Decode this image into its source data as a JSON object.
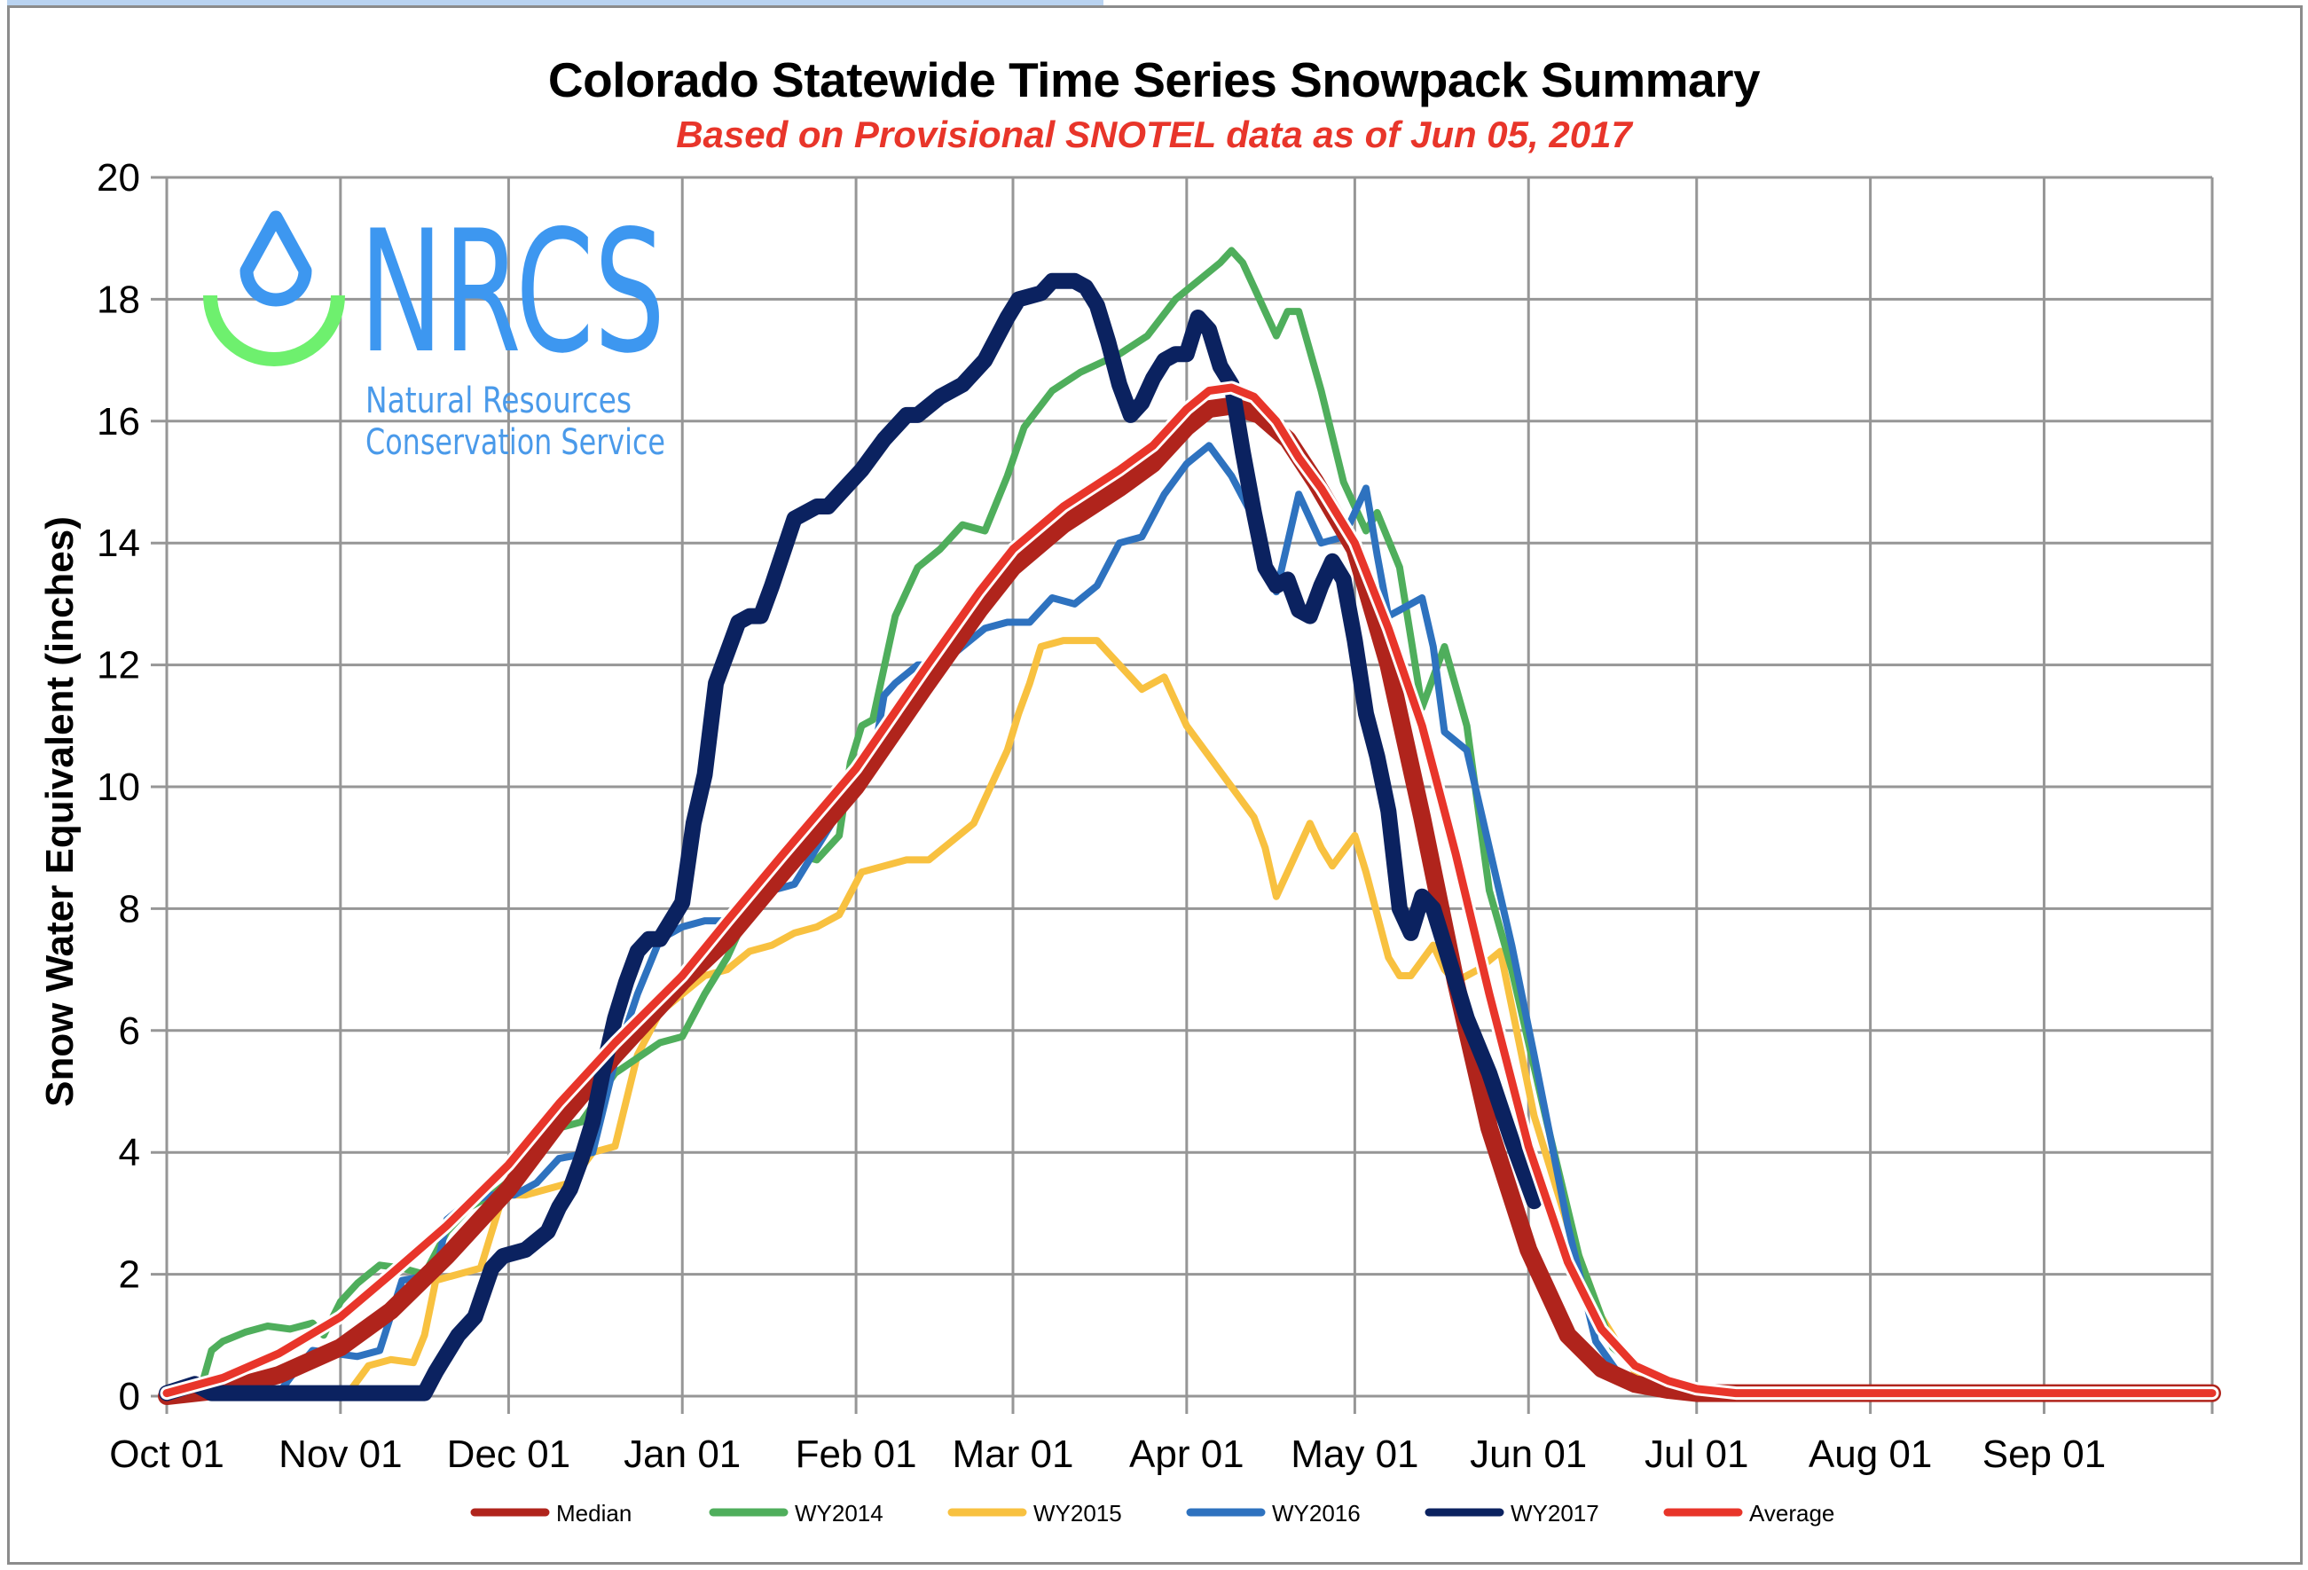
{
  "chart_data": {
    "type": "line",
    "title": "Colorado Statewide Time Series Snowpack Summary",
    "subtitle": "Based on Provisional SNOTEL data as of Jun 05, 2017",
    "xlabel": "",
    "ylabel": "Snow Water Equivalent (inches)",
    "x_unit": "day of water year (Oct 01 = 0)",
    "xlim": [
      0,
      365
    ],
    "ylim": [
      0,
      20
    ],
    "grid": true,
    "yticks": [
      0,
      2,
      4,
      6,
      8,
      10,
      12,
      14,
      16,
      18,
      20
    ],
    "xticks": [
      {
        "day": 0,
        "label": "Oct 01"
      },
      {
        "day": 31,
        "label": "Nov 01"
      },
      {
        "day": 61,
        "label": "Dec 01"
      },
      {
        "day": 92,
        "label": "Jan 01"
      },
      {
        "day": 123,
        "label": "Feb 01"
      },
      {
        "day": 151,
        "label": "Mar 01"
      },
      {
        "day": 182,
        "label": "Apr 01"
      },
      {
        "day": 212,
        "label": "May 01"
      },
      {
        "day": 243,
        "label": "Jun 01"
      },
      {
        "day": 273,
        "label": "Jul 01"
      },
      {
        "day": 304,
        "label": "Aug 01"
      },
      {
        "day": 335,
        "label": "Sep 01"
      }
    ],
    "legend_position": "bottom",
    "series": [
      {
        "name": "Median",
        "color": "#b0241c",
        "x": [
          0,
          10,
          20,
          31,
          40,
          50,
          61,
          70,
          80,
          92,
          100,
          110,
          123,
          135,
          145,
          151,
          160,
          170,
          176,
          182,
          186,
          190,
          195,
          200,
          205,
          212,
          218,
          224,
          230,
          236,
          243,
          250,
          256,
          262,
          268,
          273,
          280,
          300,
          330,
          365
        ],
        "y": [
          0.0,
          0.1,
          0.35,
          0.8,
          1.4,
          2.3,
          3.4,
          4.5,
          5.6,
          6.8,
          7.5,
          8.6,
          10.0,
          11.6,
          12.9,
          13.6,
          14.3,
          14.9,
          15.3,
          15.9,
          16.2,
          16.25,
          16.1,
          15.7,
          15.0,
          13.9,
          12.0,
          9.5,
          6.8,
          4.4,
          2.4,
          1.0,
          0.45,
          0.2,
          0.1,
          0.05,
          0.05,
          0.05,
          0.05,
          0.05
        ]
      },
      {
        "name": "WY2014",
        "color": "#4fae5c",
        "x": [
          0,
          4,
          6,
          8,
          10,
          14,
          18,
          22,
          26,
          28,
          31,
          34,
          38,
          42,
          46,
          50,
          54,
          58,
          62,
          66,
          70,
          74,
          80,
          88,
          92,
          96,
          100,
          104,
          108,
          112,
          116,
          120,
          122,
          124,
          126,
          130,
          134,
          138,
          142,
          146,
          150,
          153,
          158,
          163,
          170,
          175,
          180,
          184,
          188,
          190,
          192,
          194,
          198,
          200,
          202,
          206,
          210,
          214,
          216,
          220,
          224,
          228,
          232,
          236,
          240,
          246,
          252,
          258,
          264,
          270,
          275,
          300,
          365
        ],
        "y": [
          0.0,
          0.2,
          0.1,
          0.75,
          0.9,
          1.05,
          1.15,
          1.1,
          1.2,
          1.0,
          1.55,
          1.85,
          2.15,
          2.1,
          2.0,
          2.7,
          3.1,
          3.3,
          3.6,
          4.4,
          4.4,
          4.5,
          5.3,
          5.8,
          5.9,
          6.6,
          7.2,
          8.0,
          8.7,
          8.9,
          8.8,
          9.2,
          10.4,
          11.0,
          11.1,
          12.8,
          13.6,
          13.9,
          14.3,
          14.2,
          15.1,
          15.9,
          16.5,
          16.8,
          17.1,
          17.4,
          18.0,
          18.3,
          18.6,
          18.8,
          18.6,
          18.2,
          17.4,
          17.8,
          17.8,
          16.5,
          15.0,
          14.2,
          14.5,
          13.6,
          11.3,
          12.3,
          11.0,
          8.3,
          7.0,
          4.6,
          2.3,
          0.8,
          0.35,
          0.12,
          0.05,
          0.05,
          0.1
        ]
      },
      {
        "name": "WY2015",
        "color": "#f8c140",
        "x": [
          0,
          3,
          6,
          10,
          20,
          28,
          32,
          36,
          40,
          44,
          46,
          48,
          52,
          56,
          60,
          64,
          68,
          72,
          76,
          80,
          84,
          88,
          92,
          96,
          100,
          104,
          108,
          112,
          116,
          120,
          124,
          128,
          132,
          136,
          140,
          144,
          148,
          150,
          152,
          154,
          156,
          160,
          166,
          168,
          172,
          174,
          178,
          182,
          186,
          190,
          194,
          196,
          198,
          200,
          204,
          206,
          208,
          212,
          214,
          218,
          220,
          222,
          226,
          228,
          230,
          234,
          238,
          244,
          250,
          256,
          262,
          268,
          275,
          300,
          365
        ],
        "y": [
          0.1,
          0.2,
          0.05,
          0.0,
          0.0,
          0.0,
          0.0,
          0.5,
          0.6,
          0.55,
          1.0,
          1.9,
          2.0,
          2.1,
          3.3,
          3.3,
          3.4,
          3.5,
          4.0,
          4.1,
          5.6,
          6.3,
          6.6,
          6.9,
          7.0,
          7.3,
          7.4,
          7.6,
          7.7,
          7.9,
          8.6,
          8.7,
          8.8,
          8.8,
          9.1,
          9.4,
          10.2,
          10.6,
          11.2,
          11.7,
          12.3,
          12.4,
          12.4,
          12.2,
          11.8,
          11.6,
          11.8,
          11.0,
          10.5,
          10.0,
          9.5,
          9.0,
          8.2,
          8.6,
          9.4,
          9.0,
          8.7,
          9.2,
          8.6,
          7.2,
          6.9,
          6.9,
          7.4,
          7.0,
          6.8,
          7.0,
          7.3,
          4.6,
          2.8,
          1.3,
          0.4,
          0.12,
          0.05,
          0.05,
          0.05
        ]
      },
      {
        "name": "WY2016",
        "color": "#2e72bf",
        "x": [
          0,
          10,
          20,
          22,
          26,
          30,
          34,
          38,
          42,
          48,
          50,
          54,
          58,
          62,
          66,
          70,
          76,
          80,
          84,
          88,
          92,
          96,
          100,
          104,
          108,
          112,
          116,
          120,
          124,
          126,
          128,
          130,
          134,
          138,
          142,
          146,
          150,
          154,
          158,
          162,
          166,
          170,
          174,
          178,
          182,
          186,
          190,
          194,
          198,
          200,
          202,
          206,
          210,
          214,
          216,
          218,
          220,
          224,
          226,
          228,
          232,
          236,
          240,
          244,
          250,
          255,
          260,
          266,
          270,
          300,
          360,
          365
        ],
        "y": [
          0.0,
          0.05,
          0.05,
          0.3,
          0.75,
          0.7,
          0.65,
          0.75,
          1.9,
          2.0,
          2.9,
          3.2,
          3.3,
          3.3,
          3.5,
          3.9,
          4.0,
          5.5,
          6.6,
          7.5,
          7.7,
          7.8,
          7.8,
          8.1,
          8.3,
          8.4,
          9.0,
          9.6,
          10.0,
          10.4,
          11.5,
          11.7,
          12.0,
          12.0,
          12.3,
          12.6,
          12.7,
          12.7,
          13.1,
          13.0,
          13.3,
          14.0,
          14.1,
          14.8,
          15.3,
          15.6,
          15.1,
          14.4,
          13.2,
          14.0,
          14.8,
          14.0,
          14.1,
          14.9,
          13.8,
          12.8,
          12.9,
          13.1,
          12.3,
          10.9,
          10.6,
          9.0,
          7.4,
          5.6,
          2.8,
          0.9,
          0.25,
          0.05,
          0.02,
          0.02,
          0.05,
          0.05
        ]
      },
      {
        "name": "WY2017",
        "color": "#0b2260",
        "x": [
          0,
          5,
          8,
          12,
          20,
          30,
          40,
          46,
          48,
          52,
          55,
          58,
          60,
          64,
          68,
          70,
          72,
          74,
          76,
          78,
          80,
          82,
          84,
          86,
          88,
          92,
          94,
          96,
          98,
          100,
          102,
          104,
          106,
          108,
          112,
          116,
          118,
          120,
          124,
          128,
          132,
          134,
          138,
          142,
          146,
          150,
          152,
          156,
          158,
          162,
          164,
          166,
          168,
          170,
          172,
          174,
          176,
          178,
          180,
          182,
          184,
          186,
          188,
          190,
          192,
          194,
          196,
          198,
          200,
          202,
          204,
          206,
          208,
          210,
          212,
          214,
          216,
          218,
          220,
          222,
          224,
          226,
          228,
          230,
          232,
          236,
          240,
          244
        ],
        "y": [
          0.05,
          0.2,
          0.05,
          0.05,
          0.05,
          0.05,
          0.05,
          0.05,
          0.4,
          1.0,
          1.3,
          2.1,
          2.3,
          2.4,
          2.7,
          3.1,
          3.4,
          3.9,
          4.5,
          5.4,
          6.2,
          6.8,
          7.3,
          7.5,
          7.5,
          8.1,
          9.4,
          10.2,
          11.7,
          12.2,
          12.7,
          12.8,
          12.8,
          13.3,
          14.4,
          14.6,
          14.6,
          14.8,
          15.2,
          15.7,
          16.1,
          16.1,
          16.4,
          16.6,
          17.0,
          17.7,
          18.0,
          18.1,
          18.3,
          18.3,
          18.2,
          17.9,
          17.3,
          16.6,
          16.1,
          16.3,
          16.7,
          17.0,
          17.1,
          17.1,
          17.7,
          17.5,
          16.9,
          16.6,
          15.5,
          14.5,
          13.6,
          13.3,
          13.4,
          12.9,
          12.8,
          13.3,
          13.7,
          13.4,
          12.4,
          11.2,
          10.5,
          9.6,
          8.0,
          7.6,
          8.2,
          8.0,
          7.4,
          6.8,
          6.2,
          5.3,
          4.2,
          3.2
        ]
      },
      {
        "name": "Average",
        "color": "#e8352a",
        "x": [
          0,
          10,
          20,
          31,
          40,
          50,
          61,
          70,
          80,
          92,
          100,
          110,
          123,
          135,
          145,
          151,
          160,
          170,
          176,
          182,
          186,
          190,
          194,
          198,
          202,
          206,
          212,
          218,
          224,
          230,
          236,
          243,
          250,
          256,
          262,
          268,
          273,
          280,
          300,
          330,
          365
        ],
        "y": [
          0.05,
          0.3,
          0.7,
          1.3,
          2.0,
          2.8,
          3.8,
          4.8,
          5.8,
          6.9,
          7.8,
          8.9,
          10.3,
          11.9,
          13.2,
          13.9,
          14.6,
          15.2,
          15.6,
          16.2,
          16.5,
          16.55,
          16.4,
          16.0,
          15.4,
          14.9,
          14.0,
          12.6,
          11.0,
          8.9,
          6.6,
          4.1,
          2.2,
          1.1,
          0.5,
          0.25,
          0.12,
          0.05,
          0.05,
          0.05,
          0.05
        ]
      }
    ]
  },
  "logo": {
    "acronym": "NRCS",
    "line1": "Natural Resources",
    "line2": "Conservation Service",
    "drop_color": "#3d97f0",
    "arc_color": "#6ef06e"
  }
}
